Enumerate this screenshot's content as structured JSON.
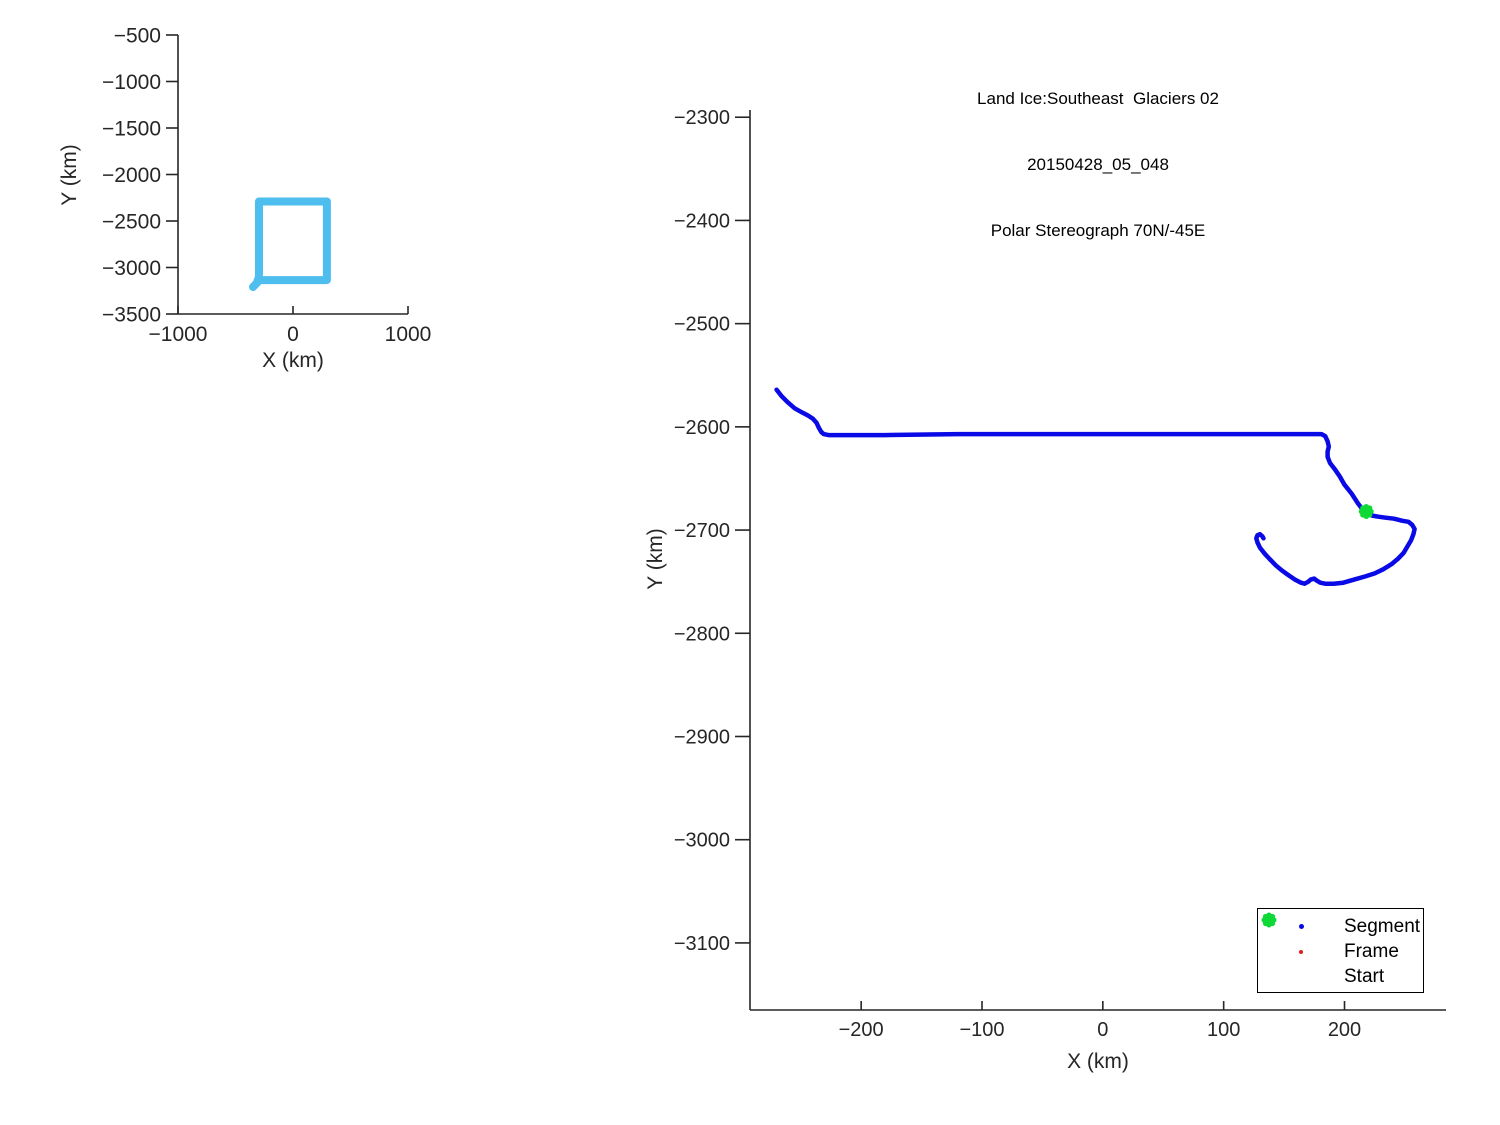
{
  "colors": {
    "axis": "#262626",
    "title_text": "#000000",
    "segment_blue": "#0A0AE6",
    "frame_red": "#E02020",
    "start_green": "#0ED936",
    "overview_cyan": "#4DBEEE",
    "background": "#FFFFFF"
  },
  "chart_data": [
    {
      "type": "line",
      "name": "overview-map",
      "xlabel": "X (km)",
      "ylabel": "Y (km)",
      "xlim": [
        -1000,
        1000
      ],
      "ylim": [
        -3500,
        -500
      ],
      "xticks": [
        -1000,
        0,
        1000
      ],
      "yticks": [
        -500,
        -1000,
        -1500,
        -2000,
        -2500,
        -3000,
        -3500
      ],
      "grid": false,
      "legend_position": "none",
      "series": [
        {
          "name": "flight-extent-outline",
          "color": "#4DBEEE",
          "width": 8,
          "points": [
            [
              -348,
              -3210
            ],
            [
              -300,
              -3147
            ],
            [
              -296,
              -3060
            ],
            [
              -296,
              -2290
            ],
            [
              295,
              -2290
            ],
            [
              295,
              -3135
            ],
            [
              -308,
              -3135
            ]
          ]
        }
      ]
    },
    {
      "type": "line",
      "name": "flight-track",
      "title_lines": [
        "Land Ice:Southeast  Glaciers 02",
        "20150428_05_048",
        "Polar Stereograph 70N/-45E"
      ],
      "xlabel": "X (km)",
      "ylabel": "Y (km)",
      "xlim": [
        -292,
        284
      ],
      "ylim": [
        -3165,
        -2293
      ],
      "xticks": [
        -200,
        -100,
        0,
        100,
        200
      ],
      "yticks": [
        -2300,
        -2400,
        -2500,
        -2600,
        -2700,
        -2800,
        -2900,
        -3000,
        -3100
      ],
      "grid": false,
      "series": [
        {
          "name": "segment-track",
          "color": "#0A0AE6",
          "width": 4.5,
          "points": [
            [
              -270,
              -2564
            ],
            [
              -266,
              -2570
            ],
            [
              -261,
              -2576
            ],
            [
              -255,
              -2582
            ],
            [
              -249,
              -2586
            ],
            [
              -244,
              -2589
            ],
            [
              -240,
              -2592
            ],
            [
              -237,
              -2596
            ],
            [
              -235,
              -2601
            ],
            [
              -233,
              -2605
            ],
            [
              -231,
              -2607
            ],
            [
              -227,
              -2608
            ],
            [
              -180,
              -2608
            ],
            [
              -120,
              -2607
            ],
            [
              -60,
              -2607
            ],
            [
              0,
              -2607
            ],
            [
              60,
              -2607
            ],
            [
              120,
              -2607
            ],
            [
              160,
              -2607
            ],
            [
              181,
              -2607
            ],
            [
              184,
              -2609
            ],
            [
              186,
              -2614
            ],
            [
              187,
              -2619
            ],
            [
              186,
              -2624
            ],
            [
              186,
              -2629
            ],
            [
              188,
              -2635
            ],
            [
              192,
              -2641
            ],
            [
              196,
              -2648
            ],
            [
              200,
              -2656
            ],
            [
              206,
              -2665
            ],
            [
              211,
              -2674
            ],
            [
              215,
              -2680
            ],
            [
              219,
              -2683
            ],
            [
              223,
              -2686
            ],
            [
              228,
              -2687
            ],
            [
              234,
              -2688
            ],
            [
              241,
              -2689
            ],
            [
              248,
              -2691
            ],
            [
              253,
              -2692
            ],
            [
              256,
              -2695
            ],
            [
              258,
              -2699
            ],
            [
              257,
              -2704
            ],
            [
              255,
              -2710
            ],
            [
              252,
              -2716
            ],
            [
              249,
              -2722
            ],
            [
              244,
              -2728
            ],
            [
              239,
              -2733
            ],
            [
              232,
              -2738
            ],
            [
              225,
              -2742
            ],
            [
              217,
              -2745
            ],
            [
              208,
              -2748
            ],
            [
              199,
              -2751
            ],
            [
              191,
              -2752
            ],
            [
              184,
              -2752
            ],
            [
              180,
              -2751
            ],
            [
              177,
              -2749
            ],
            [
              175,
              -2747
            ],
            [
              172,
              -2748
            ],
            [
              170,
              -2750
            ],
            [
              167,
              -2752
            ],
            [
              164,
              -2751
            ],
            [
              159,
              -2748
            ],
            [
              154,
              -2744
            ],
            [
              148,
              -2739
            ],
            [
              143,
              -2734
            ],
            [
              138,
              -2728
            ],
            [
              134,
              -2723
            ],
            [
              130,
              -2717
            ],
            [
              128,
              -2712
            ],
            [
              127,
              -2708
            ],
            [
              128,
              -2705
            ],
            [
              130,
              -2704
            ],
            [
              132,
              -2706
            ],
            [
              133,
              -2708
            ]
          ]
        }
      ],
      "markers": [
        {
          "name": "start-marker",
          "shape": "clover",
          "color": "#0ED936",
          "size": 16,
          "x": 218,
          "y": -2682
        }
      ],
      "legend": {
        "position": "bottom-right",
        "items": [
          {
            "label": "Segment",
            "marker": "dot",
            "color": "#0A0AE6",
            "size": 5
          },
          {
            "label": "Frame",
            "marker": "dot",
            "color": "#E02020",
            "size": 4
          },
          {
            "label": "Start",
            "marker": "clover",
            "color": "#0ED936",
            "size": 16
          }
        ]
      }
    }
  ]
}
